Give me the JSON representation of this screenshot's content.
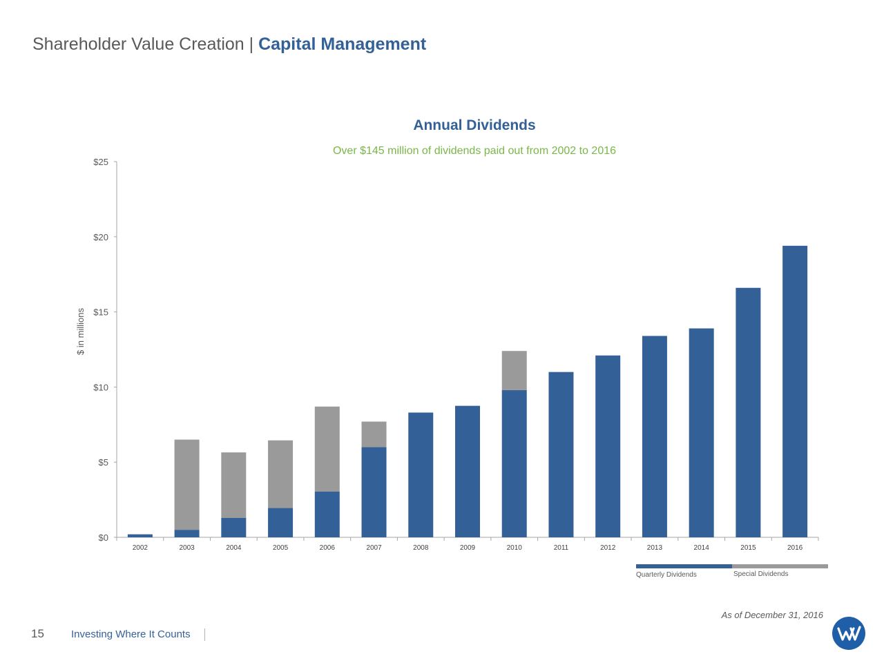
{
  "header": {
    "title_prefix": "Shareholder Value Creation |",
    "title_accent": "Capital Management"
  },
  "chart_data": {
    "type": "bar",
    "stacked": true,
    "title": "Annual Dividends",
    "subtitle": "Over $145 million of dividends paid out from 2002 to 2016",
    "ylabel": "$ in millions",
    "xlabel": "",
    "ylim": [
      0,
      25
    ],
    "yticks": [
      0,
      5,
      10,
      15,
      20,
      25
    ],
    "ytick_labels": [
      "$0",
      "$5",
      "$10",
      "$15",
      "$20",
      "$25"
    ],
    "categories": [
      "2002",
      "2003",
      "2004",
      "2005",
      "2006",
      "2007",
      "2008",
      "2009",
      "2010",
      "2011",
      "2012",
      "2013",
      "2014",
      "2015",
      "2016"
    ],
    "series": [
      {
        "name": "Quarterly Dividends",
        "color": "#336197",
        "values": [
          0.2,
          0.5,
          1.3,
          1.95,
          3.05,
          6.0,
          8.3,
          8.75,
          9.8,
          11.0,
          12.1,
          13.4,
          13.9,
          16.6,
          19.4
        ]
      },
      {
        "name": "Special Dividends",
        "color": "#9a9a9a",
        "values": [
          0.0,
          6.0,
          4.35,
          4.5,
          5.65,
          1.7,
          0.0,
          0.0,
          2.6,
          0.0,
          0.0,
          0.0,
          0.0,
          0.0,
          0.0
        ]
      }
    ],
    "grid": false,
    "legend_position": "bottom-right"
  },
  "footer": {
    "as_of": "As of December 31, 2016",
    "page_number": "15",
    "tagline": "Investing Where It Counts",
    "logo_icon": "company-logo-icon"
  }
}
